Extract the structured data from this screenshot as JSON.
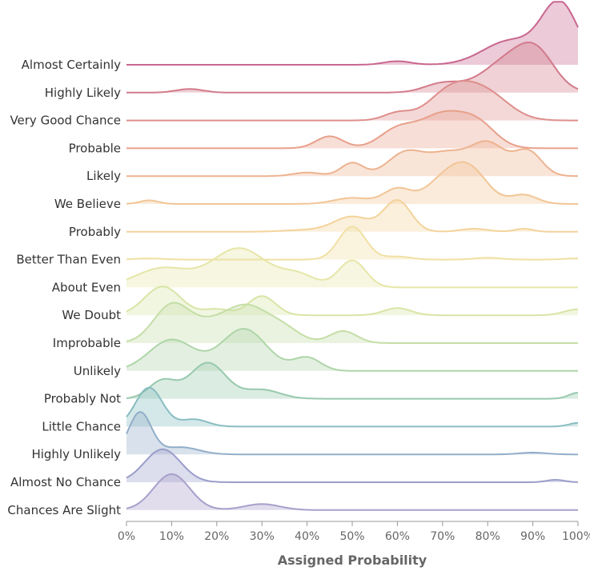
{
  "chart_data": {
    "type": "ridgeline",
    "title": "",
    "xlabel": "Assigned Probability",
    "ylabel": "",
    "x_range": [
      0,
      100
    ],
    "x_ticks": [
      "0%",
      "10%",
      "20%",
      "30%",
      "40%",
      "50%",
      "60%",
      "70%",
      "80%",
      "90%",
      "100%"
    ],
    "grid": false,
    "legend": "none",
    "series": [
      {
        "name": "Almost Certainly",
        "color": "#c9678f",
        "peaks": [
          [
            60,
            0.06,
            3
          ],
          [
            85,
            0.4,
            6
          ],
          [
            96,
            1.0,
            4
          ]
        ]
      },
      {
        "name": "Highly Likely",
        "color": "#d27b8a",
        "peaks": [
          [
            14,
            0.06,
            3
          ],
          [
            70,
            0.15,
            4
          ],
          [
            85,
            0.55,
            6
          ],
          [
            91,
            0.45,
            4
          ]
        ]
      },
      {
        "name": "Very Good Chance",
        "color": "#de8e8c",
        "peaks": [
          [
            60,
            0.12,
            3
          ],
          [
            72,
            0.5,
            5
          ],
          [
            80,
            0.4,
            5
          ]
        ]
      },
      {
        "name": "Probable",
        "color": "#e8a08b",
        "peaks": [
          [
            45,
            0.2,
            3
          ],
          [
            60,
            0.3,
            4
          ],
          [
            70,
            0.55,
            5
          ],
          [
            78,
            0.35,
            4
          ]
        ]
      },
      {
        "name": "Likely",
        "color": "#edb38f",
        "peaks": [
          [
            40,
            0.06,
            3
          ],
          [
            50,
            0.22,
            2.5
          ],
          [
            62,
            0.4,
            4
          ],
          [
            71,
            0.35,
            4
          ],
          [
            80,
            0.55,
            4
          ],
          [
            89,
            0.4,
            3
          ]
        ]
      },
      {
        "name": "We Believe",
        "color": "#f2c596",
        "peaks": [
          [
            5,
            0.06,
            2
          ],
          [
            50,
            0.1,
            4
          ],
          [
            60,
            0.25,
            3
          ],
          [
            70,
            0.35,
            4
          ],
          [
            76,
            0.55,
            4
          ],
          [
            88,
            0.15,
            3
          ]
        ]
      },
      {
        "name": "Probably",
        "color": "#f3d39c",
        "peaks": [
          [
            40,
            0.03,
            5
          ],
          [
            50,
            0.25,
            4
          ],
          [
            60,
            0.52,
            3
          ],
          [
            77,
            0.05,
            3
          ],
          [
            88,
            0.05,
            2
          ]
        ]
      },
      {
        "name": "Better Than Even",
        "color": "#f1e0a3",
        "peaks": [
          [
            5,
            0.02,
            3
          ],
          [
            50,
            0.55,
            3
          ],
          [
            60,
            0.05,
            3
          ],
          [
            80,
            0.03,
            3
          ],
          [
            100,
            0.02,
            3
          ]
        ]
      },
      {
        "name": "About Even",
        "color": "#e6e6a8",
        "peaks": [
          [
            8,
            0.32,
            6
          ],
          [
            25,
            0.65,
            6
          ],
          [
            38,
            0.2,
            4
          ],
          [
            50,
            0.45,
            3
          ]
        ]
      },
      {
        "name": "We Doubt",
        "color": "#d8e5a6",
        "peaks": [
          [
            8,
            0.48,
            4
          ],
          [
            20,
            0.1,
            3
          ],
          [
            30,
            0.32,
            3
          ],
          [
            60,
            0.12,
            3
          ],
          [
            100,
            0.1,
            3
          ]
        ]
      },
      {
        "name": "Improbable",
        "color": "#c4dea6",
        "peaks": [
          [
            10,
            0.62,
            4
          ],
          [
            20,
            0.35,
            5
          ],
          [
            27,
            0.45,
            4
          ],
          [
            34,
            0.28,
            4
          ],
          [
            48,
            0.2,
            3
          ]
        ]
      },
      {
        "name": "Unlikely",
        "color": "#aed5a8",
        "peaks": [
          [
            10,
            0.52,
            5
          ],
          [
            26,
            0.7,
            5
          ],
          [
            40,
            0.22,
            3
          ]
        ]
      },
      {
        "name": "Probably Not",
        "color": "#97c9ad",
        "peaks": [
          [
            8,
            0.3,
            3
          ],
          [
            18,
            0.6,
            4
          ],
          [
            30,
            0.15,
            4
          ],
          [
            100,
            0.1,
            2
          ]
        ]
      },
      {
        "name": "Little Chance",
        "color": "#88bdc0",
        "peaks": [
          [
            5,
            0.65,
            3
          ],
          [
            15,
            0.12,
            3
          ],
          [
            100,
            0.06,
            2
          ]
        ]
      },
      {
        "name": "Highly Unlikely",
        "color": "#92adc9",
        "peaks": [
          [
            3,
            0.7,
            2.5
          ],
          [
            12,
            0.12,
            4
          ],
          [
            90,
            0.03,
            3
          ]
        ]
      },
      {
        "name": "Almost No Chance",
        "color": "#9a9dca",
        "peaks": [
          [
            8,
            0.55,
            4
          ],
          [
            95,
            0.04,
            2
          ]
        ]
      },
      {
        "name": "Chances Are Slight",
        "color": "#a89fcb",
        "peaks": [
          [
            10,
            0.6,
            4
          ],
          [
            30,
            0.1,
            4
          ]
        ]
      }
    ]
  }
}
